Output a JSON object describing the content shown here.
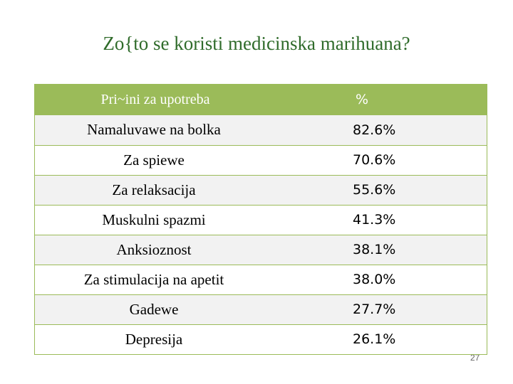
{
  "title": "Zo{to se koristi medicinska marihuana?",
  "table": {
    "headers": [
      "Pri~ini za upotreba",
      "%"
    ],
    "rows": [
      {
        "reason": "Namaluvawe na bolka",
        "percent": "82.6%"
      },
      {
        "reason": "Za spiewe",
        "percent": "70.6%"
      },
      {
        "reason": "Za relaksacija",
        "percent": "55.6%"
      },
      {
        "reason": "Muskulni spazmi",
        "percent": "41.3%"
      },
      {
        "reason": "Anksioznost",
        "percent": "38.1%"
      },
      {
        "reason": "Za stimulacija na apetit",
        "percent": "38.0%"
      },
      {
        "reason": "Gadewe",
        "percent": "27.7%"
      },
      {
        "reason": "Depresija",
        "percent": "26.1%"
      }
    ]
  },
  "page_number": "27"
}
